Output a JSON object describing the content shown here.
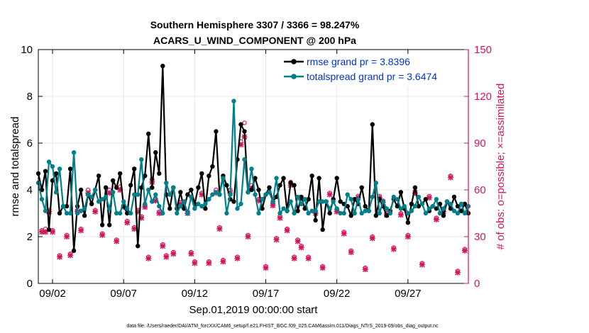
{
  "chart_data": {
    "type": "line",
    "title": "Southern Hemisphere 3307 / 3366 = 98.247%",
    "subtitle": "ACARS_U_WIND_COMPONENT @ 200 hPa",
    "xlabel": "Sep.01,2019 00:00:00 start",
    "ylabel": "rmse and totalspread",
    "y2label": "# of obs: o=possible; ×=assimilated",
    "footnote": "data file: /Users/raeder/DAI/ATM_forcXX/CAM6_setup/f.e21.FHIST_BGC.f09_025.CAM6assim.011/Diags_NTrS_2019-09/obs_diag_output.nc",
    "xlim": [
      1,
      31.25
    ],
    "ylim": [
      0,
      10
    ],
    "y2lim": [
      0,
      150
    ],
    "x_ticks": [
      {
        "v": 2,
        "label": "09/02"
      },
      {
        "v": 7,
        "label": "09/07"
      },
      {
        "v": 12,
        "label": "09/12"
      },
      {
        "v": 17,
        "label": "09/17"
      },
      {
        "v": 22,
        "label": "09/22"
      },
      {
        "v": 27,
        "label": "09/27"
      }
    ],
    "y_ticks": [
      0,
      2,
      4,
      6,
      8,
      10
    ],
    "y2_ticks": [
      0,
      30,
      60,
      90,
      120,
      150
    ],
    "grid": true,
    "colors": {
      "rmse": "#000000",
      "spread": "#00808a",
      "obs": "#d4145a",
      "legend_text": "#0033cc",
      "right_axis": "#d4145a"
    },
    "x_start": 1.0,
    "x_step": 0.25,
    "series": [
      {
        "name": "rmse grand pr = 3.8396",
        "values": [
          4.7,
          4.0,
          4.8,
          2.3,
          4.4,
          4.7,
          3.0,
          3.3,
          3.3,
          4.9,
          1.4,
          3.3,
          4.0,
          2.9,
          3.8,
          3.4,
          4.0,
          4.6,
          2.5,
          4.1,
          2.5,
          4.4,
          4.1,
          4.7,
          3.3,
          3.0,
          4.2,
          4.9,
          1.6,
          4.1,
          4.6,
          6.4,
          4.1,
          5.6,
          4.7,
          9.3,
          3.8,
          3.2,
          4.1,
          3.2,
          3.9,
          3.2,
          3.8,
          4.0,
          3.4,
          4.1,
          4.7,
          3.2,
          4.6,
          5.0,
          6.5,
          3.8,
          4.6,
          4.2,
          3.6,
          3.5,
          5.3,
          6.8,
          6.5,
          3.9,
          4.0,
          4.5,
          4.0,
          3.2,
          3.8,
          4.1,
          3.5,
          3.7,
          4.2,
          4.5,
          3.1,
          4.3,
          4.2,
          3.1,
          3.7,
          3.2,
          3.6,
          4.6,
          2.7,
          4.5,
          2.3,
          3.5,
          3.0,
          3.6,
          4.5,
          3.5,
          3.4,
          3.3,
          2.9,
          3.6,
          3.4,
          4.1,
          3.3,
          3.1,
          6.8,
          2.9,
          3.6,
          3.3,
          2.9,
          3.1,
          3.6,
          3.3,
          3.9,
          3.2,
          2.6,
          3.4,
          4.1,
          3.3,
          3.4,
          3.6,
          3.1,
          3.3,
          3.2,
          3.4,
          2.9,
          3.5,
          3.2,
          3.7,
          3.3,
          3.1,
          3.4,
          3.0
        ]
      },
      {
        "name": "totalspread grand pr = 3.6474",
        "values": [
          4.3,
          3.6,
          3.1,
          5.2,
          5.0,
          3.9,
          4.9,
          3.3,
          3.0,
          3.0,
          5.6,
          3.0,
          3.1,
          3.2,
          3.8,
          3.7,
          4.0,
          3.5,
          3.6,
          3.7,
          3.2,
          3.9,
          3.0,
          3.0,
          3.5,
          3.2,
          3.0,
          3.8,
          3.8,
          5.3,
          3.4,
          4.0,
          3.5,
          3.8,
          3.3,
          3.0,
          4.3,
          3.8,
          4.1,
          3.0,
          3.3,
          3.5,
          3.0,
          3.7,
          3.2,
          3.4,
          3.3,
          3.4,
          3.6,
          3.8,
          3.9,
          3.8,
          4.5,
          3.0,
          3.8,
          7.8,
          3.2,
          3.4,
          5.3,
          3.9,
          4.9,
          3.8,
          3.0,
          3.6,
          3.8,
          3.9,
          3.5,
          4.5,
          3.0,
          3.2,
          3.1,
          3.5,
          3.0,
          3.7,
          3.4,
          3.6,
          3.0,
          3.1,
          3.1,
          3.5,
          3.5,
          3.5,
          3.2,
          3.5,
          3.2,
          3.0,
          3.0,
          3.8,
          3.6,
          3.0,
          3.6,
          3.0,
          3.1,
          3.1,
          3.7,
          4.3,
          3.0,
          3.5,
          3.2,
          3.0,
          3.7,
          3.6,
          3.2,
          3.3,
          3.0,
          3.1,
          3.3,
          3.7,
          3.4,
          3.0,
          3.2,
          3.3,
          3.6,
          3.0,
          3.2,
          3.5,
          3.4,
          3.1,
          3.0,
          3.4,
          3.0,
          3.3
        ]
      }
    ],
    "obs_possible": [
      {
        "x": 1.25,
        "y": 34
      },
      {
        "x": 1.5,
        "y": 35
      },
      {
        "x": 1.75,
        "y": 47
      },
      {
        "x": 2.0,
        "y": 34
      },
      {
        "x": 2.5,
        "y": 18
      },
      {
        "x": 3.0,
        "y": 31
      },
      {
        "x": 3.25,
        "y": 19
      },
      {
        "x": 3.75,
        "y": 47
      },
      {
        "x": 4.0,
        "y": 35
      },
      {
        "x": 4.5,
        "y": 60
      },
      {
        "x": 5.0,
        "y": 47
      },
      {
        "x": 5.5,
        "y": 32
      },
      {
        "x": 6.0,
        "y": 60
      },
      {
        "x": 6.5,
        "y": 28
      },
      {
        "x": 6.75,
        "y": 62
      },
      {
        "x": 7.0,
        "y": 50
      },
      {
        "x": 7.25,
        "y": 40
      },
      {
        "x": 7.75,
        "y": 36
      },
      {
        "x": 8.0,
        "y": 47
      },
      {
        "x": 8.25,
        "y": 43
      },
      {
        "x": 8.5,
        "y": 50
      },
      {
        "x": 8.75,
        "y": 17
      },
      {
        "x": 9.0,
        "y": 67
      },
      {
        "x": 9.25,
        "y": 54
      },
      {
        "x": 9.5,
        "y": 46
      },
      {
        "x": 9.75,
        "y": 25
      },
      {
        "x": 10.0,
        "y": 18
      },
      {
        "x": 10.5,
        "y": 20
      },
      {
        "x": 11.0,
        "y": 52
      },
      {
        "x": 11.5,
        "y": 46
      },
      {
        "x": 11.75,
        "y": 20
      },
      {
        "x": 12.0,
        "y": 14
      },
      {
        "x": 12.5,
        "y": 58
      },
      {
        "x": 13.0,
        "y": 14
      },
      {
        "x": 13.5,
        "y": 60
      },
      {
        "x": 13.75,
        "y": 36
      },
      {
        "x": 14.0,
        "y": 15
      },
      {
        "x": 14.5,
        "y": 60
      },
      {
        "x": 15.0,
        "y": 17
      },
      {
        "x": 15.25,
        "y": 91
      },
      {
        "x": 15.5,
        "y": 103
      },
      {
        "x": 15.75,
        "y": 31
      },
      {
        "x": 16.0,
        "y": 63
      },
      {
        "x": 16.5,
        "y": 54
      },
      {
        "x": 17.0,
        "y": 11
      },
      {
        "x": 17.5,
        "y": 51
      },
      {
        "x": 17.75,
        "y": 29
      },
      {
        "x": 18.0,
        "y": 43
      },
      {
        "x": 18.5,
        "y": 35
      },
      {
        "x": 18.75,
        "y": 65
      },
      {
        "x": 19.0,
        "y": 17
      },
      {
        "x": 19.25,
        "y": 28
      },
      {
        "x": 19.5,
        "y": 24
      },
      {
        "x": 20.0,
        "y": 17
      },
      {
        "x": 20.5,
        "y": 46
      },
      {
        "x": 21.0,
        "y": 11
      },
      {
        "x": 21.5,
        "y": 58
      },
      {
        "x": 22.0,
        "y": 47
      },
      {
        "x": 22.5,
        "y": 33
      },
      {
        "x": 23.0,
        "y": 21
      },
      {
        "x": 23.5,
        "y": 56
      },
      {
        "x": 24.0,
        "y": 10
      },
      {
        "x": 24.5,
        "y": 30
      },
      {
        "x": 25.0,
        "y": 56
      },
      {
        "x": 25.25,
        "y": 53
      },
      {
        "x": 25.5,
        "y": 45
      },
      {
        "x": 26.0,
        "y": 23
      },
      {
        "x": 26.5,
        "y": 45
      },
      {
        "x": 27.0,
        "y": 31
      },
      {
        "x": 27.5,
        "y": 59
      },
      {
        "x": 28.0,
        "y": 13
      },
      {
        "x": 28.5,
        "y": 56
      },
      {
        "x": 29.0,
        "y": 42
      },
      {
        "x": 29.5,
        "y": 47
      },
      {
        "x": 30.0,
        "y": 69
      },
      {
        "x": 30.5,
        "y": 8
      },
      {
        "x": 31.0,
        "y": 22
      }
    ],
    "obs_assimilated": [
      {
        "x": 1.25,
        "y": 33
      },
      {
        "x": 1.5,
        "y": 33
      },
      {
        "x": 1.75,
        "y": 46
      },
      {
        "x": 2.0,
        "y": 33
      },
      {
        "x": 2.5,
        "y": 17
      },
      {
        "x": 3.0,
        "y": 30
      },
      {
        "x": 3.25,
        "y": 18
      },
      {
        "x": 3.75,
        "y": 46
      },
      {
        "x": 4.0,
        "y": 34
      },
      {
        "x": 4.5,
        "y": 58
      },
      {
        "x": 5.0,
        "y": 46
      },
      {
        "x": 5.5,
        "y": 31
      },
      {
        "x": 6.0,
        "y": 58
      },
      {
        "x": 6.5,
        "y": 27
      },
      {
        "x": 6.75,
        "y": 60
      },
      {
        "x": 7.0,
        "y": 49
      },
      {
        "x": 7.25,
        "y": 39
      },
      {
        "x": 7.75,
        "y": 35
      },
      {
        "x": 8.0,
        "y": 46
      },
      {
        "x": 8.25,
        "y": 42
      },
      {
        "x": 8.5,
        "y": 49
      },
      {
        "x": 8.75,
        "y": 16
      },
      {
        "x": 9.0,
        "y": 65
      },
      {
        "x": 9.25,
        "y": 53
      },
      {
        "x": 9.5,
        "y": 45
      },
      {
        "x": 9.75,
        "y": 24
      },
      {
        "x": 10.0,
        "y": 17
      },
      {
        "x": 10.5,
        "y": 19
      },
      {
        "x": 11.0,
        "y": 51
      },
      {
        "x": 11.5,
        "y": 45
      },
      {
        "x": 11.75,
        "y": 19
      },
      {
        "x": 12.0,
        "y": 13
      },
      {
        "x": 12.5,
        "y": 57
      },
      {
        "x": 13.0,
        "y": 13
      },
      {
        "x": 13.5,
        "y": 58
      },
      {
        "x": 13.75,
        "y": 35
      },
      {
        "x": 14.0,
        "y": 14
      },
      {
        "x": 14.5,
        "y": 58
      },
      {
        "x": 15.0,
        "y": 16
      },
      {
        "x": 15.25,
        "y": 89
      },
      {
        "x": 15.5,
        "y": 94
      },
      {
        "x": 15.75,
        "y": 30
      },
      {
        "x": 16.0,
        "y": 61
      },
      {
        "x": 16.5,
        "y": 53
      },
      {
        "x": 17.0,
        "y": 10
      },
      {
        "x": 17.5,
        "y": 50
      },
      {
        "x": 17.75,
        "y": 28
      },
      {
        "x": 18.0,
        "y": 42
      },
      {
        "x": 18.5,
        "y": 34
      },
      {
        "x": 18.75,
        "y": 63
      },
      {
        "x": 19.0,
        "y": 16
      },
      {
        "x": 19.25,
        "y": 27
      },
      {
        "x": 19.5,
        "y": 23
      },
      {
        "x": 20.0,
        "y": 16
      },
      {
        "x": 20.5,
        "y": 45
      },
      {
        "x": 21.0,
        "y": 10
      },
      {
        "x": 21.5,
        "y": 57
      },
      {
        "x": 22.0,
        "y": 46
      },
      {
        "x": 22.5,
        "y": 32
      },
      {
        "x": 23.0,
        "y": 20
      },
      {
        "x": 23.5,
        "y": 55
      },
      {
        "x": 24.0,
        "y": 9
      },
      {
        "x": 24.5,
        "y": 29
      },
      {
        "x": 25.0,
        "y": 55
      },
      {
        "x": 25.25,
        "y": 52
      },
      {
        "x": 25.5,
        "y": 44
      },
      {
        "x": 26.0,
        "y": 22
      },
      {
        "x": 26.5,
        "y": 44
      },
      {
        "x": 27.0,
        "y": 30
      },
      {
        "x": 27.5,
        "y": 58
      },
      {
        "x": 28.0,
        "y": 12
      },
      {
        "x": 28.5,
        "y": 55
      },
      {
        "x": 29.0,
        "y": 41
      },
      {
        "x": 29.5,
        "y": 46
      },
      {
        "x": 30.0,
        "y": 68
      },
      {
        "x": 30.5,
        "y": 7
      },
      {
        "x": 31.0,
        "y": 21
      }
    ]
  }
}
